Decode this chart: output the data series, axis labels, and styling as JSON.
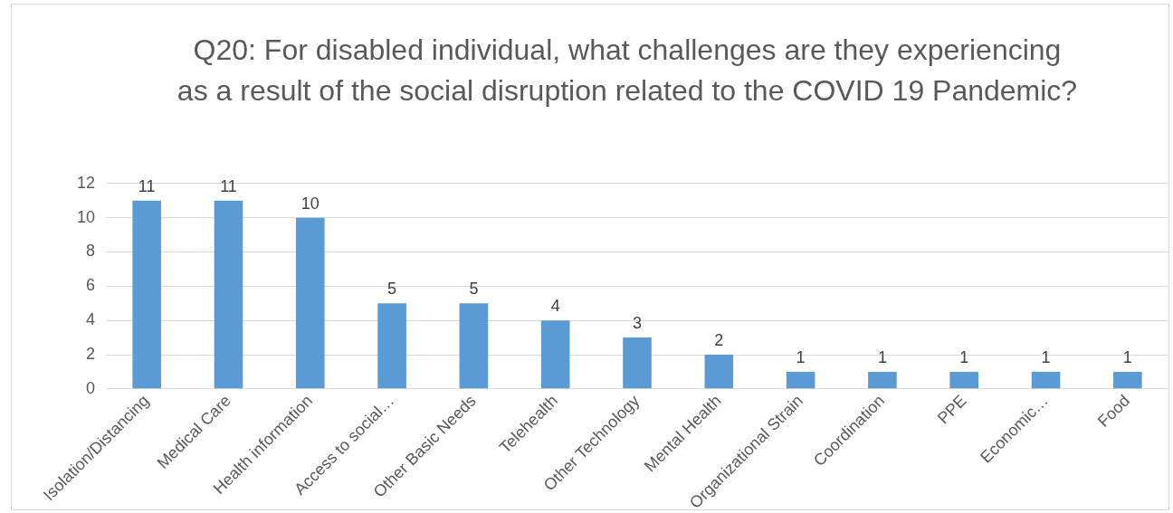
{
  "chart_data": {
    "type": "bar",
    "title": "Q20: For disabled individual, what challenges are they experiencing as a result of the social disruption related to the COVID 19 Pandemic?",
    "categories": [
      "Isolation/Distancing",
      "Medical Care",
      "Health information",
      "Access to social…",
      "Other Basic Needs",
      "Telehealth",
      "Other Technology",
      "Mental Health",
      "Organizational Strain",
      "Coordination",
      "PPE",
      "Economic…",
      "Food"
    ],
    "values": [
      11,
      11,
      10,
      5,
      5,
      4,
      3,
      2,
      1,
      1,
      1,
      1,
      1
    ],
    "color": "#5b9bd5",
    "ylim": [
      0,
      12
    ],
    "yticks": [
      0,
      2,
      4,
      6,
      8,
      10,
      12
    ],
    "grid": "y",
    "legend": false,
    "data_labels": true
  }
}
